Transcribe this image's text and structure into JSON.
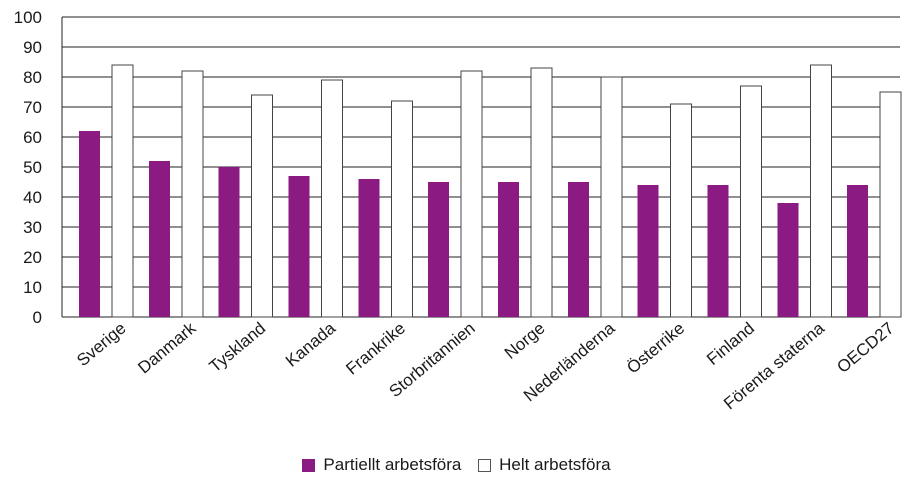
{
  "chart_data": {
    "type": "bar",
    "categories": [
      "Sverige",
      "Danmark",
      "Tyskland",
      "Kanada",
      "Frankrike",
      "Storbritannien",
      "Norge",
      "Nederländerna",
      "Österrike",
      "Finland",
      "Förenta staterna",
      "OECD27"
    ],
    "series": [
      {
        "name": "Partiellt arbetsföra",
        "values": [
          62,
          52,
          50,
          47,
          46,
          45,
          45,
          45,
          44,
          44,
          38,
          44
        ],
        "color": "#8b1a83"
      },
      {
        "name": "Helt arbetsföra",
        "values": [
          84,
          82,
          74,
          79,
          72,
          82,
          83,
          80,
          71,
          77,
          84,
          75
        ],
        "color": "#ffffff"
      }
    ],
    "ylim": [
      0,
      100
    ],
    "yticks": [
      "0",
      "10",
      "20",
      "30",
      "40",
      "50",
      "60",
      "70",
      "80",
      "90",
      "100"
    ],
    "grid": true,
    "legend_position": "bottom"
  }
}
